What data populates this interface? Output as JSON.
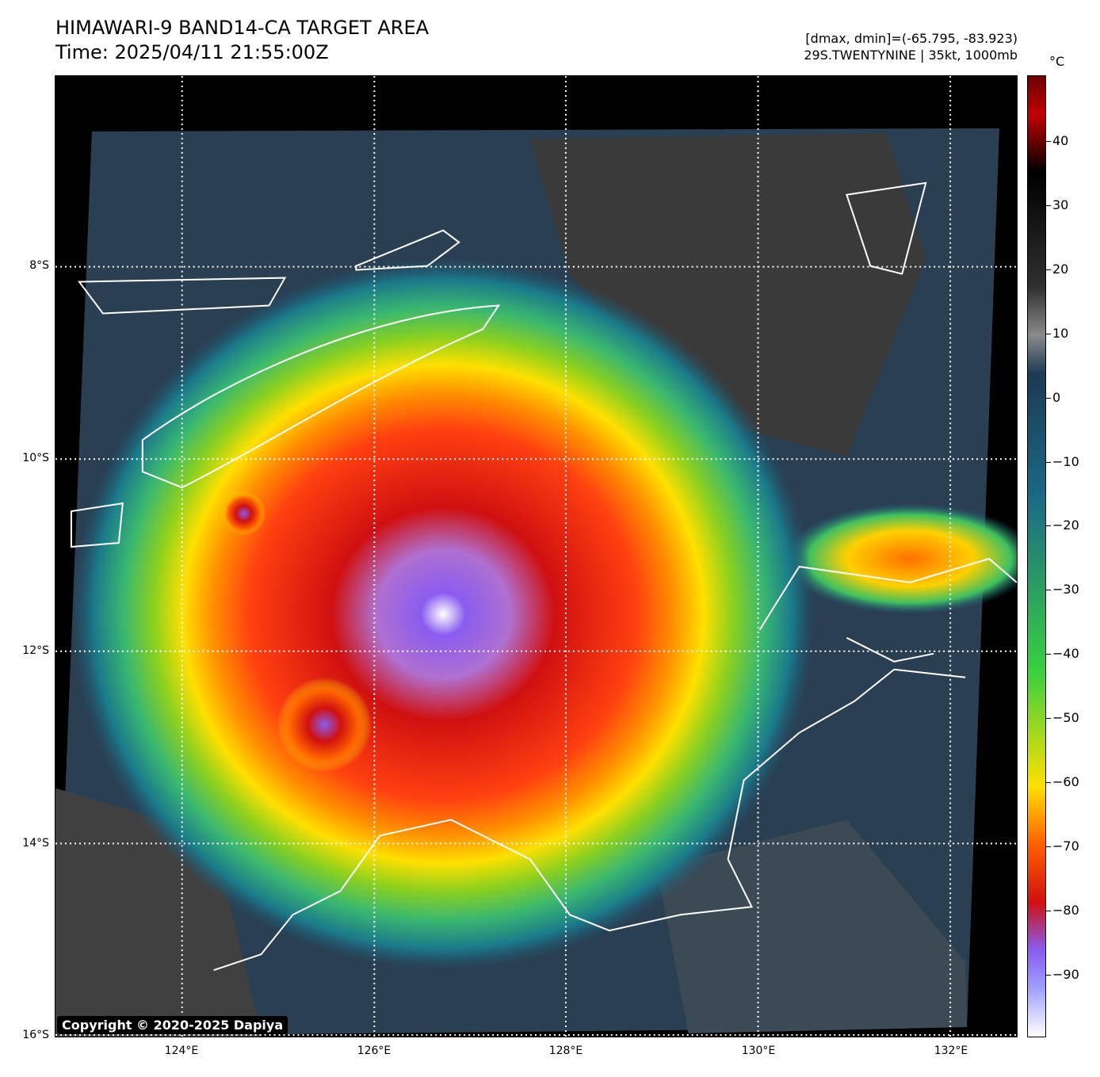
{
  "header": {
    "title_line1": "HIMAWARI-9 BAND14-CA TARGET AREA",
    "title_line2": "Time: 2025/04/11 21:55:00Z",
    "dminmax": "[dmax, dmin]=(-65.795, -83.923)",
    "storm": "29S.TWENTYNINE | 35kt, 1000mb"
  },
  "map": {
    "lat_labels": [
      "8°S",
      "10°S",
      "12°S",
      "14°S",
      "16°S"
    ],
    "lon_labels": [
      "124°E",
      "126°E",
      "128°E",
      "130°E",
      "132°E"
    ],
    "storm_center": {
      "lon": 127.2,
      "lat": -11.8
    }
  },
  "colorbar": {
    "unit": "°C",
    "labels": [
      "40",
      "30",
      "20",
      "10",
      "0",
      "−10",
      "−20",
      "−30",
      "−40",
      "−50",
      "−60",
      "−70",
      "−80",
      "−90"
    ],
    "colors": {
      "warm_top": "#6b0000",
      "black": "#000000",
      "gray": "#8a8a8a",
      "teal": "#1b6a86",
      "green": "#3ad040",
      "yellow": "#ffe000",
      "orange": "#ff6000",
      "red": "#d01010",
      "purple": "#8a5cf0",
      "white": "#ffffff"
    }
  },
  "copyright": "Copyright © 2020-2025 Dapiya"
}
